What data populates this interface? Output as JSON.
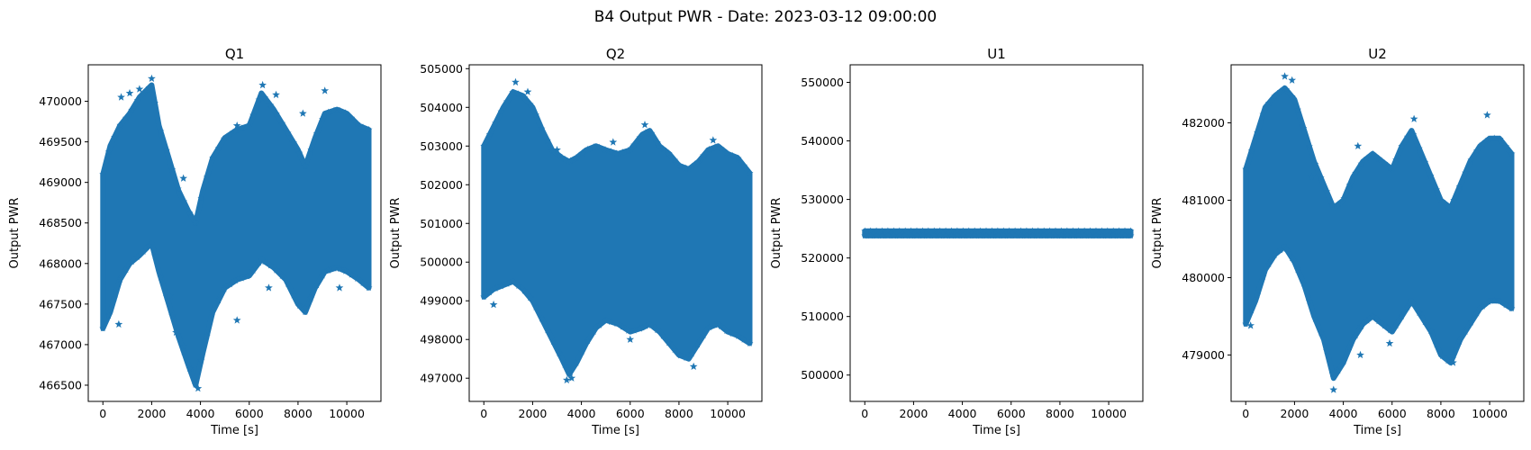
{
  "figure": {
    "suptitle": "B4 Output PWR - Date: 2023-03-12 09:00:00",
    "series_color": "#1f77b4",
    "marker": "star"
  },
  "chart_data": [
    {
      "type": "scatter",
      "title": "Q1",
      "xlabel": "Time [s]",
      "ylabel": "Output PWR",
      "xlim": [
        -600,
        11400
      ],
      "ylim": [
        466300,
        470450
      ],
      "xticks": [
        0,
        2000,
        4000,
        6000,
        8000,
        10000
      ],
      "yticks": [
        466500,
        467000,
        467500,
        468000,
        468500,
        469000,
        469500,
        470000
      ],
      "envelope": {
        "x": [
          0,
          300,
          700,
          1100,
          1500,
          2000,
          2300,
          2700,
          3100,
          3500,
          3800,
          4100,
          4500,
          5000,
          5500,
          6000,
          6500,
          7000,
          7500,
          8000,
          8300,
          8700,
          9100,
          9600,
          10000,
          10500,
          10900
        ],
        "upper": [
          469100,
          469450,
          469700,
          469850,
          470050,
          470200,
          469700,
          469300,
          468900,
          468650,
          468500,
          468900,
          469300,
          469550,
          469650,
          469700,
          470100,
          469900,
          469650,
          469400,
          469200,
          469550,
          469850,
          469900,
          469850,
          469700,
          469650
        ],
        "lower": [
          467200,
          467400,
          467800,
          468000,
          468100,
          468250,
          467900,
          467500,
          467100,
          466750,
          466500,
          466900,
          467400,
          467700,
          467800,
          467850,
          468050,
          467950,
          467800,
          467500,
          467400,
          467700,
          467900,
          467950,
          467900,
          467800,
          467700
        ]
      },
      "outliers_top": [
        [
          750,
          470050
        ],
        [
          1100,
          470100
        ],
        [
          1500,
          470150
        ],
        [
          2000,
          470280
        ],
        [
          3300,
          469050
        ],
        [
          5500,
          469700
        ],
        [
          6550,
          470200
        ],
        [
          7100,
          470080
        ],
        [
          8200,
          469850
        ],
        [
          9100,
          470130
        ]
      ],
      "outliers_bottom": [
        [
          650,
          467250
        ],
        [
          2750,
          467600
        ],
        [
          3000,
          467150
        ],
        [
          3300,
          466980
        ],
        [
          3900,
          466460
        ],
        [
          5500,
          467300
        ],
        [
          6800,
          467700
        ],
        [
          8300,
          467450
        ],
        [
          9700,
          467700
        ]
      ]
    },
    {
      "type": "scatter",
      "title": "Q2",
      "xlabel": "Time [s]",
      "ylabel": "Output PWR",
      "xlim": [
        -600,
        11400
      ],
      "ylim": [
        496400,
        505100
      ],
      "xticks": [
        0,
        2000,
        4000,
        6000,
        8000,
        10000
      ],
      "yticks": [
        497000,
        498000,
        499000,
        500000,
        501000,
        502000,
        503000,
        504000,
        505000
      ],
      "envelope": {
        "x": [
          0,
          400,
          800,
          1200,
          1600,
          2000,
          2400,
          2800,
          3200,
          3500,
          3800,
          4200,
          4600,
          5000,
          5500,
          6000,
          6500,
          6800,
          7200,
          7600,
          8000,
          8400,
          8800,
          9200,
          9600,
          10000,
          10400,
          10900
        ],
        "upper": [
          503000,
          503500,
          504000,
          504400,
          504300,
          504000,
          503400,
          502900,
          502700,
          502600,
          502700,
          502900,
          503000,
          502900,
          502800,
          502900,
          503300,
          503400,
          503000,
          502800,
          502500,
          502400,
          502600,
          502900,
          503000,
          502800,
          502700,
          502300
        ],
        "lower": [
          499100,
          499300,
          499400,
          499500,
          499300,
          499000,
          498500,
          498000,
          497500,
          497100,
          497400,
          497900,
          498300,
          498500,
          498400,
          498200,
          498300,
          498400,
          498200,
          497900,
          497600,
          497500,
          497900,
          498300,
          498400,
          498200,
          498100,
          497900
        ]
      },
      "outliers_top": [
        [
          1300,
          504650
        ],
        [
          1800,
          504400
        ],
        [
          3000,
          502900
        ],
        [
          5300,
          503100
        ],
        [
          6600,
          503550
        ],
        [
          9400,
          503150
        ]
      ],
      "outliers_bottom": [
        [
          400,
          498900
        ],
        [
          3400,
          496950
        ],
        [
          3600,
          497000
        ],
        [
          6000,
          498000
        ],
        [
          8600,
          497300
        ]
      ]
    },
    {
      "type": "scatter",
      "title": "U1",
      "xlabel": "Time [s]",
      "ylabel": "Output PWR",
      "xlim": [
        -600,
        11400
      ],
      "ylim": [
        495500,
        553000
      ],
      "xticks": [
        0,
        2000,
        4000,
        6000,
        8000,
        10000
      ],
      "yticks": [
        500000,
        510000,
        520000,
        530000,
        540000,
        550000
      ],
      "envelope": {
        "x": [
          0,
          10900
        ],
        "upper": [
          524600,
          524600
        ],
        "lower": [
          523800,
          523800
        ]
      },
      "outliers_top": [],
      "outliers_bottom": []
    },
    {
      "type": "scatter",
      "title": "U2",
      "xlabel": "Time [s]",
      "ylabel": "Output PWR",
      "xlim": [
        -600,
        11400
      ],
      "ylim": [
        478400,
        482750
      ],
      "xticks": [
        0,
        2000,
        4000,
        6000,
        8000,
        10000
      ],
      "yticks": [
        479000,
        480000,
        481000,
        482000
      ],
      "envelope": {
        "x": [
          0,
          400,
          800,
          1200,
          1600,
          2000,
          2400,
          2800,
          3200,
          3600,
          4000,
          4400,
          4800,
          5200,
          5600,
          6000,
          6400,
          6800,
          7200,
          7600,
          8000,
          8400,
          8800,
          9200,
          9600,
          10000,
          10400,
          10900
        ],
        "upper": [
          481400,
          481800,
          482200,
          482350,
          482450,
          482300,
          481900,
          481500,
          481200,
          480900,
          481000,
          481300,
          481500,
          481600,
          481500,
          481400,
          481700,
          481900,
          481600,
          481300,
          481000,
          480900,
          481200,
          481500,
          481700,
          481800,
          481800,
          481600
        ],
        "lower": [
          479400,
          479700,
          480100,
          480300,
          480400,
          480200,
          479900,
          479500,
          479200,
          478700,
          478900,
          479200,
          479400,
          479500,
          479400,
          479300,
          479500,
          479700,
          479500,
          479300,
          479000,
          478900,
          479200,
          479400,
          479600,
          479700,
          479700,
          479600
        ]
      },
      "outliers_top": [
        [
          1600,
          482600
        ],
        [
          1900,
          482550
        ],
        [
          2700,
          481300
        ],
        [
          4600,
          481700
        ],
        [
          6900,
          482050
        ],
        [
          9900,
          482100
        ]
      ],
      "outliers_bottom": [
        [
          200,
          479380
        ],
        [
          3600,
          478550
        ],
        [
          4700,
          479000
        ],
        [
          5900,
          479150
        ],
        [
          8500,
          478900
        ]
      ]
    }
  ]
}
